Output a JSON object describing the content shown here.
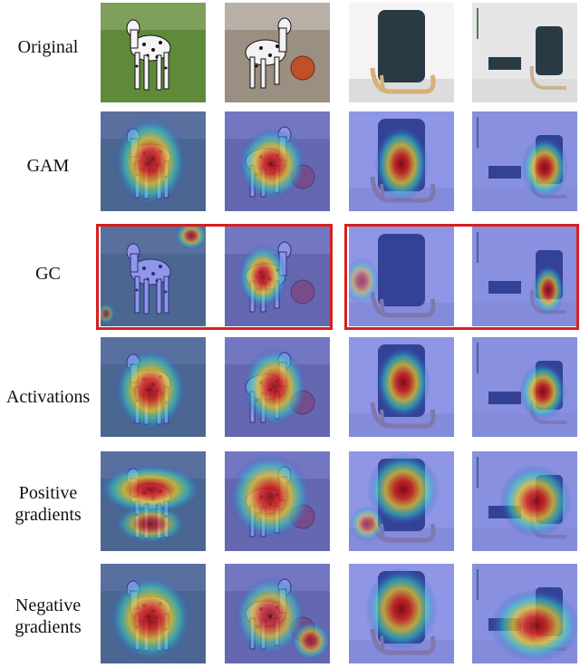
{
  "figure": {
    "rows": [
      {
        "label": "Original",
        "kind": "original"
      },
      {
        "label": "GAM",
        "kind": "gam"
      },
      {
        "label": "GC",
        "kind": "gc"
      },
      {
        "label": "Activations",
        "kind": "act"
      },
      {
        "label": "Positive\ngradients",
        "kind": "pos"
      },
      {
        "label": "Negative\ngradients",
        "kind": "neg"
      }
    ],
    "columns": [
      "dalmatian-standing",
      "dalmatian-with-ball",
      "armchair-studio",
      "armchair-room"
    ],
    "highlight_color": "#d62020",
    "highlighted_row": "GC"
  }
}
